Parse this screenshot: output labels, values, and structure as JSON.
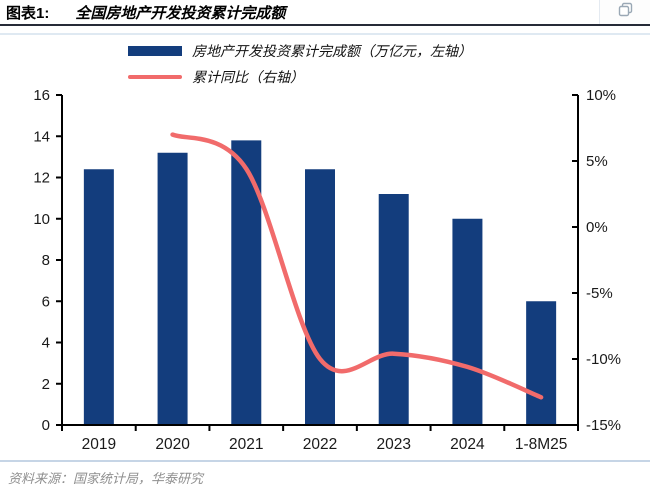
{
  "header": {
    "tag": "图表1:",
    "title": "全国房地产开发投资累计完成额",
    "action_icon": "copy-icon"
  },
  "colors": {
    "bar": "#133d7d",
    "line": "#f16b6b",
    "axis": "#000000",
    "header_rule": "#262b38",
    "footer_rule": "#c6d5e6",
    "source_text": "#8f8f8f"
  },
  "chart_data": {
    "type": "combo",
    "categories": [
      "2019",
      "2020",
      "2021",
      "2022",
      "2023",
      "2024",
      "1-8M25"
    ],
    "series": [
      {
        "name": "房地产开发投资累计完成额（万亿元，左轴）",
        "type": "bar",
        "axis": "left",
        "color": "#133d7d",
        "values": [
          12.4,
          13.2,
          13.8,
          12.4,
          11.2,
          10.0,
          6.0
        ]
      },
      {
        "name": "累计同比（右轴）",
        "type": "line",
        "axis": "right",
        "color": "#f16b6b",
        "values": [
          null,
          7.0,
          4.4,
          -10.0,
          -9.6,
          -10.6,
          -12.9
        ]
      }
    ],
    "left_axis": {
      "min": 0,
      "max": 16,
      "step": 2,
      "ticks": [
        "0",
        "2",
        "4",
        "6",
        "8",
        "10",
        "12",
        "14",
        "16"
      ]
    },
    "right_axis": {
      "min": -15,
      "max": 10,
      "step": 5,
      "ticks": [
        "10%",
        "5%",
        "0%",
        "-5%",
        "-10%",
        "-15%"
      ]
    },
    "grid": false,
    "legend_position": "top-center"
  },
  "footer": {
    "source": "资料来源：国家统计局，华泰研究"
  }
}
